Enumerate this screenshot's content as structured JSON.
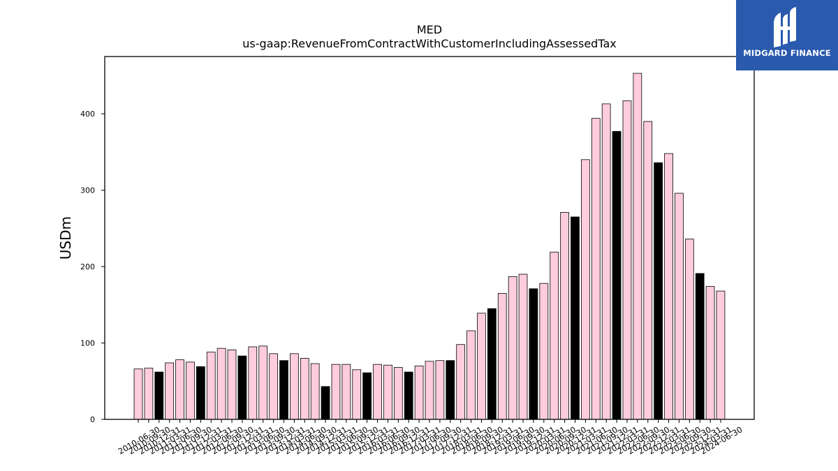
{
  "chart_data": {
    "type": "bar",
    "title": "MED",
    "subtitle": "us-gaap:RevenueFromContractWithCustomerIncludingAssessedTax",
    "xlabel": "",
    "ylabel": "USDm",
    "ylim": [
      0,
      475
    ],
    "yticks": [
      0,
      100,
      200,
      300,
      400
    ],
    "grid": false,
    "legend": "none",
    "colors": {
      "quarter": "#ffccdd",
      "year_end": "#000000",
      "edge": "#000000"
    },
    "categories": [
      "2010-06-30",
      "2010-09-30",
      "2010-12-31",
      "2011-03-31",
      "2011-06-30",
      "2011-09-30",
      "2011-12-31",
      "2012-03-31",
      "2012-06-30",
      "2012-09-30",
      "2012-12-31",
      "2013-03-31",
      "2013-06-30",
      "2013-09-30",
      "2013-12-31",
      "2014-03-31",
      "2014-06-30",
      "2014-09-30",
      "2014-12-31",
      "2015-03-31",
      "2015-06-30",
      "2015-09-30",
      "2015-12-31",
      "2016-03-31",
      "2016-06-30",
      "2016-09-30",
      "2016-12-31",
      "2017-03-31",
      "2017-06-30",
      "2017-09-30",
      "2017-12-31",
      "2018-03-31",
      "2018-06-30",
      "2018-09-30",
      "2018-12-31",
      "2019-03-31",
      "2019-06-30",
      "2019-09-30",
      "2019-12-31",
      "2020-03-31",
      "2020-06-30",
      "2020-09-30",
      "2020-12-31",
      "2021-03-31",
      "2021-06-30",
      "2021-09-30",
      "2021-12-31",
      "2022-03-31",
      "2022-06-30",
      "2022-09-30",
      "2022-12-31",
      "2023-03-31",
      "2023-06-30",
      "2023-09-30",
      "2023-12-31",
      "2024-03-31",
      "2024-06-30"
    ],
    "values": [
      66,
      67,
      62,
      74,
      78,
      75,
      69,
      88,
      93,
      91,
      83,
      95,
      96,
      86,
      77,
      86,
      80,
      73,
      43,
      72,
      72,
      65,
      61,
      72,
      71,
      68,
      62,
      70,
      76,
      77,
      77,
      98,
      116,
      139,
      145,
      165,
      187,
      190,
      171,
      178,
      219,
      271,
      265,
      340,
      394,
      413,
      377,
      417,
      453,
      390,
      336,
      348,
      296,
      236,
      191,
      174,
      168
    ],
    "year_end": [
      false,
      false,
      true,
      false,
      false,
      false,
      true,
      false,
      false,
      false,
      true,
      false,
      false,
      false,
      true,
      false,
      false,
      false,
      true,
      false,
      false,
      false,
      true,
      false,
      false,
      false,
      true,
      false,
      false,
      false,
      true,
      false,
      false,
      false,
      true,
      false,
      false,
      false,
      true,
      false,
      false,
      false,
      true,
      false,
      false,
      false,
      true,
      false,
      false,
      false,
      true,
      false,
      false,
      false,
      true,
      false,
      false
    ]
  },
  "logo": {
    "text": "MIDGARD FINANCE"
  }
}
